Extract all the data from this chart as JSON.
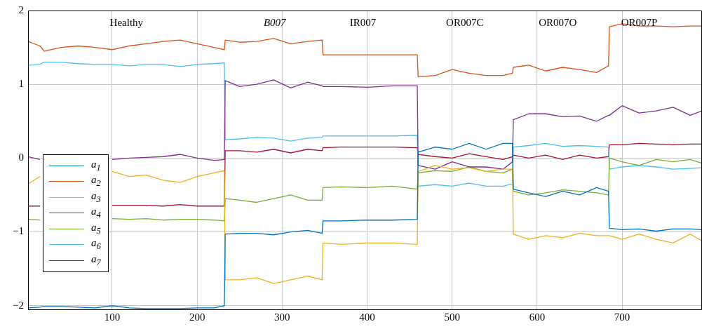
{
  "chart_data": {
    "type": "line",
    "x": [
      1,
      15,
      20,
      40,
      60,
      80,
      100,
      120,
      140,
      160,
      180,
      200,
      220,
      232,
      233,
      250,
      270,
      290,
      310,
      330,
      347,
      348,
      370,
      400,
      430,
      459,
      460,
      480,
      500,
      520,
      540,
      560,
      571,
      572,
      590,
      610,
      630,
      650,
      670,
      684,
      685,
      700,
      720,
      740,
      760,
      780,
      794
    ],
    "series": [
      {
        "name": "a$_{1}$",
        "color": "#0072bd",
        "values": [
          -2.03,
          -2.02,
          -2.01,
          -2.01,
          -2.02,
          -2.03,
          -2.0,
          -2.03,
          -2.04,
          -2.04,
          -2.04,
          -2.03,
          -2.03,
          -2.0,
          -1.03,
          -1.02,
          -1.02,
          -1.04,
          -1.0,
          -0.98,
          -1.02,
          -0.85,
          -0.85,
          -0.84,
          -0.84,
          -0.83,
          0.08,
          0.15,
          0.12,
          0.2,
          0.12,
          0.2,
          0.2,
          -0.42,
          -0.47,
          -0.52,
          -0.45,
          -0.5,
          -0.4,
          -0.45,
          -0.95,
          -0.97,
          -0.96,
          -0.99,
          -0.96,
          -0.96,
          -0.97
        ]
      },
      {
        "name": "a$_{2}$",
        "color": "#d95319",
        "values": [
          1.58,
          1.52,
          1.45,
          1.5,
          1.52,
          1.5,
          1.47,
          1.52,
          1.55,
          1.58,
          1.6,
          1.55,
          1.5,
          1.47,
          1.6,
          1.57,
          1.58,
          1.62,
          1.55,
          1.58,
          1.6,
          1.4,
          1.4,
          1.4,
          1.4,
          1.4,
          1.1,
          1.12,
          1.2,
          1.15,
          1.12,
          1.12,
          1.15,
          1.23,
          1.26,
          1.18,
          1.23,
          1.2,
          1.16,
          1.25,
          1.78,
          1.82,
          1.79,
          1.79,
          1.78,
          1.79,
          1.79
        ]
      },
      {
        "name": "a$_{3}$",
        "color": "#edb120",
        "values": [
          -0.35,
          -0.25,
          null,
          null,
          null,
          null,
          -0.18,
          -0.25,
          -0.23,
          -0.3,
          -0.33,
          -0.25,
          -0.2,
          -0.17,
          -1.65,
          -1.65,
          -1.62,
          -1.7,
          -1.65,
          -1.6,
          -1.65,
          -1.15,
          -1.17,
          -1.15,
          -1.15,
          -1.17,
          -0.18,
          -0.1,
          -0.15,
          -0.13,
          -0.18,
          -0.15,
          -0.15,
          -1.03,
          -1.1,
          -1.05,
          -1.08,
          -1.02,
          -1.05,
          -1.05,
          -1.05,
          -1.1,
          -1.03,
          -1.1,
          -1.15,
          -1.03,
          -1.12
        ]
      },
      {
        "name": "a$_{4}$",
        "color": "#7e2f8e",
        "values": [
          0.02,
          -0.02,
          null,
          null,
          null,
          null,
          -0.02,
          0.0,
          0.01,
          0.02,
          0.05,
          0.0,
          -0.03,
          -0.02,
          1.05,
          0.97,
          1.0,
          1.06,
          0.95,
          1.03,
          0.98,
          0.97,
          0.97,
          0.96,
          0.98,
          0.98,
          -0.1,
          -0.15,
          -0.05,
          -0.12,
          -0.12,
          -0.15,
          -0.05,
          0.52,
          0.6,
          0.6,
          0.56,
          0.57,
          0.5,
          0.58,
          0.58,
          0.71,
          0.61,
          0.64,
          0.69,
          0.58,
          0.64
        ]
      },
      {
        "name": "a$_{5}$",
        "color": "#77ac30",
        "values": [
          -0.83,
          -0.84,
          null,
          null,
          null,
          null,
          -0.82,
          -0.83,
          -0.82,
          -0.84,
          -0.83,
          -0.83,
          -0.84,
          -0.85,
          -0.55,
          -0.57,
          -0.6,
          -0.55,
          -0.5,
          -0.57,
          -0.57,
          -0.4,
          -0.39,
          -0.4,
          -0.38,
          -0.42,
          -0.2,
          -0.17,
          -0.18,
          -0.12,
          -0.18,
          -0.2,
          -0.15,
          -0.45,
          -0.5,
          -0.47,
          -0.43,
          -0.45,
          -0.47,
          -0.5,
          0.0,
          -0.05,
          -0.1,
          -0.02,
          -0.05,
          -0.02,
          -0.07
        ]
      },
      {
        "name": "a$_{6}$",
        "color": "#4dbeee",
        "values": [
          1.26,
          1.27,
          1.3,
          1.3,
          1.28,
          1.27,
          1.27,
          1.25,
          1.27,
          1.27,
          1.24,
          1.27,
          1.28,
          1.29,
          0.25,
          0.26,
          0.28,
          0.27,
          0.23,
          0.27,
          0.28,
          0.3,
          0.3,
          0.3,
          0.3,
          0.31,
          -0.38,
          -0.36,
          -0.38,
          -0.34,
          -0.38,
          -0.38,
          -0.35,
          0.15,
          0.17,
          0.2,
          0.16,
          0.17,
          0.16,
          0.15,
          -0.15,
          -0.12,
          -0.1,
          -0.12,
          -0.15,
          -0.14,
          -0.13
        ]
      },
      {
        "name": "a$_{7}$",
        "color": "#a2142f",
        "values": [
          -0.65,
          -0.65,
          null,
          null,
          null,
          null,
          -0.64,
          -0.64,
          -0.64,
          -0.65,
          -0.63,
          -0.65,
          -0.65,
          -0.65,
          0.1,
          0.1,
          0.08,
          0.12,
          0.07,
          0.12,
          0.1,
          0.14,
          0.15,
          0.15,
          0.15,
          0.14,
          0.05,
          0.02,
          0.0,
          0.06,
          0.02,
          -0.02,
          0.02,
          0.04,
          0.0,
          0.04,
          -0.02,
          0.04,
          0.0,
          0.02,
          0.18,
          0.18,
          0.2,
          0.19,
          0.18,
          0.19,
          0.19
        ]
      }
    ],
    "xlim": [
      1,
      794
    ],
    "xticks": [
      100,
      200,
      300,
      400,
      500,
      600,
      700
    ],
    "ylim": [
      -2.05,
      2
    ],
    "yticks": [
      -2,
      -1,
      0,
      1,
      2
    ],
    "annotations": [
      "Healthy",
      "B007",
      "IR007",
      "OR007C",
      "OR007O",
      "OR007P"
    ],
    "grid": true,
    "legend": "left",
    "marker": "none",
    "line_style": "solid"
  }
}
